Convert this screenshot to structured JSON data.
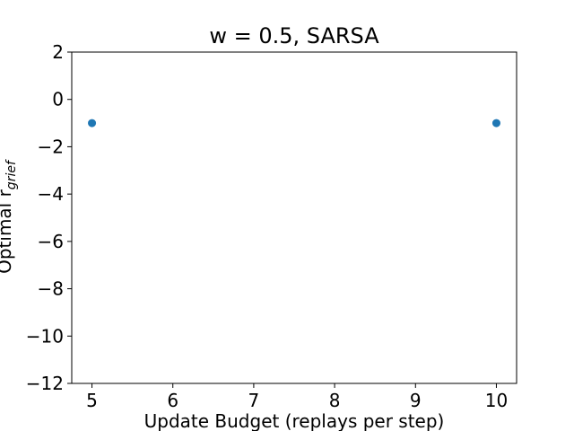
{
  "chart_data": {
    "type": "scatter",
    "title": "w = 0.5, SARSA",
    "xlabel": "Update Budget (replays per step)",
    "ylabel_main": "Optimal r",
    "ylabel_sub": "grief",
    "x_ticks": [
      5,
      6,
      7,
      8,
      9,
      10
    ],
    "y_ticks": [
      2,
      0,
      -2,
      -4,
      -6,
      -8,
      -10,
      -12
    ],
    "x_tick_labels": [
      "5",
      "6",
      "7",
      "8",
      "9",
      "10"
    ],
    "y_tick_labels": [
      "2",
      "0",
      "−2",
      "−4",
      "−6",
      "−8",
      "−10",
      "−12"
    ],
    "xlim": [
      4.75,
      10.25
    ],
    "ylim": [
      -12,
      2
    ],
    "grid": false,
    "series": [
      {
        "color": "#1f77b4",
        "points": [
          {
            "x": 5,
            "y": -1
          },
          {
            "x": 10,
            "y": -1
          }
        ]
      }
    ]
  }
}
